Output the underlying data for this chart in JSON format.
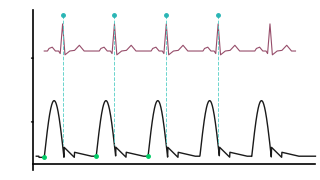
{
  "bg_color": "#ffffff",
  "ecg_color": "#8b3a5a",
  "lv_color": "#1a1a1a",
  "dashed_color": "#4ecdc4",
  "dot_color": "#2ab5b5",
  "green_dot_color": "#00cc66",
  "figsize": [
    3.2,
    1.8
  ],
  "dpi": 100
}
